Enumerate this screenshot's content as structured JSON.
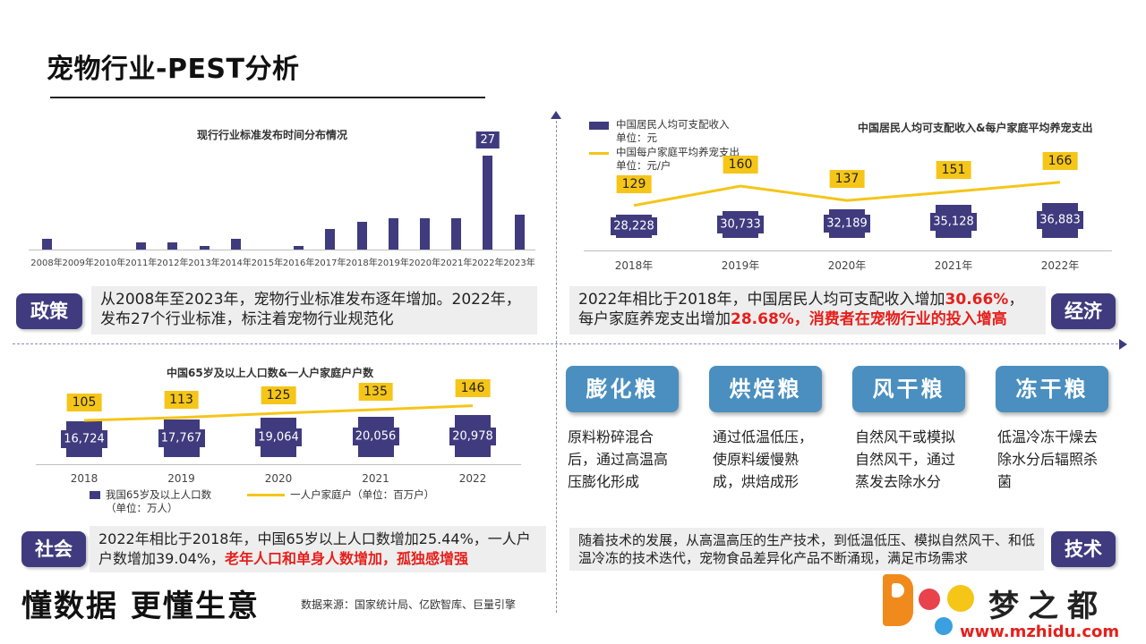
{
  "page": {
    "title": "宠物行业-PEST分析",
    "slogan": "懂数据 更懂生意",
    "source": "数据来源：国家统计局、亿欧智库、巨量引擎"
  },
  "colors": {
    "navy": "#3f3b7e",
    "gold": "#f5c518",
    "red": "#e5201c",
    "blue": "#4a8fbf"
  },
  "policy": {
    "tag": "政策",
    "text": "从2008年至2023年，宠物行业标准发布逐年增加。2022年，发布27个行业标准，标注着宠物行业规范化"
  },
  "economy": {
    "tag": "经济",
    "text_a": "2022年相比于2018年，中国居民人均可支配收入增加",
    "text_b": "30.66%",
    "text_c": "，每户家庭养宠支出增加",
    "text_d": "28.68%，消费者在宠物行业的投入增高"
  },
  "society": {
    "tag": "社会",
    "text_a": "2022年相比于2018年，中国65岁以上人口数增加25.44%，一人户户数增加39.04%，",
    "text_b": "老年人口和单身人数增加，孤独感增强"
  },
  "technology": {
    "tag": "技术",
    "text": "随着技术的发展，从高温高压的生产技术，到低温低压、模拟自然风干、和低温冷冻的技术迭代，宠物食品差异化产品不断涌现，满足市场需求",
    "cards": [
      {
        "title": "膨化粮",
        "desc": "原料粉碎混合后，通过高温高压膨化形成"
      },
      {
        "title": "烘焙粮",
        "desc": "通过低温低压，使原料缓慢熟成，烘焙成形"
      },
      {
        "title": "风干粮",
        "desc": "自然风干或模拟自然风干，通过蒸发去除水分"
      },
      {
        "title": "冻干粮",
        "desc": "低温冷冻干燥去除水分后辐照杀菌"
      }
    ]
  },
  "chart_data": [
    {
      "type": "bar",
      "title": "现行行业标准发布时间分布情况",
      "categories": [
        "2008年",
        "2009年",
        "2010年",
        "2011年",
        "2012年",
        "2013年",
        "2014年",
        "2015年",
        "2016年",
        "2017年",
        "2018年",
        "2019年",
        "2020年",
        "2021年",
        "2022年",
        "2023年"
      ],
      "values": [
        3,
        0,
        0,
        2,
        2,
        1,
        3,
        0,
        1,
        6,
        8,
        9,
        9,
        9,
        27,
        10
      ],
      "data_labels": {
        "2022年": "27"
      },
      "ylim": [
        0,
        30
      ]
    },
    {
      "type": "bar+line",
      "title": "中国居民人均可支配收入&每户家庭平均养宠支出",
      "categories": [
        "2018年",
        "2019年",
        "2020年",
        "2021年",
        "2022年"
      ],
      "series": [
        {
          "name": "中国居民人均可支配收入",
          "unit": "单位：元",
          "type": "bar",
          "values": [
            28228,
            30733,
            32189,
            35128,
            36883
          ],
          "labels": [
            "28,228",
            "30,733",
            "32,189",
            "35,128",
            "36,883"
          ]
        },
        {
          "name": "中国每户家庭平均养宠支出",
          "unit": "单位：元/户",
          "type": "line",
          "values": [
            129,
            160,
            137,
            151,
            166
          ],
          "labels": [
            "129",
            "160",
            "137",
            "151",
            "166"
          ]
        }
      ],
      "legend": "top-left"
    },
    {
      "type": "bar+line",
      "title": "中国65岁及以上人口数&一人户家庭户户数",
      "categories": [
        "2018",
        "2019",
        "2020",
        "2021",
        "2022"
      ],
      "series": [
        {
          "name": "我国65岁及以上人口数",
          "unit": "（单位：万人）",
          "type": "bar",
          "values": [
            16724,
            17767,
            19064,
            20056,
            20978
          ],
          "labels": [
            "16,724",
            "17,767",
            "19,064",
            "20,056",
            "20,978"
          ]
        },
        {
          "name": "一人户家庭户",
          "unit": "（单位：百万户）",
          "type": "line",
          "values": [
            105,
            113,
            125,
            135,
            146
          ],
          "labels": [
            "105",
            "113",
            "125",
            "135",
            "146"
          ]
        }
      ],
      "legend": "bottom"
    }
  ],
  "branding": {
    "logo_text": "梦之都",
    "logo_url": "www.mzhidu.com"
  }
}
